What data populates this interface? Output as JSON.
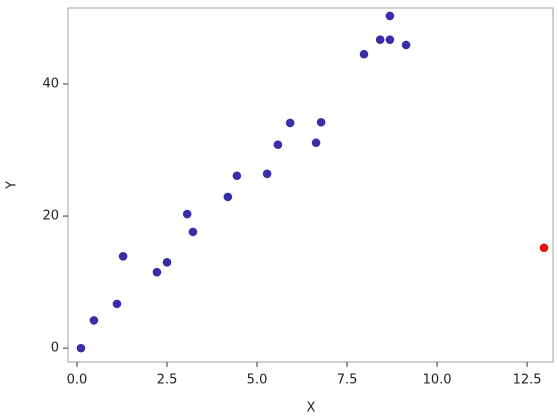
{
  "chart_data": {
    "type": "scatter",
    "xlabel": "X",
    "ylabel": "Y",
    "series": [
      {
        "color": "#3a2ea8",
        "x": [
          0.11,
          0.47,
          1.11,
          1.28,
          2.22,
          2.5,
          3.06,
          3.22,
          4.19,
          4.44,
          5.28,
          5.58,
          5.92,
          6.64,
          6.78,
          7.97,
          8.42,
          8.69,
          8.69,
          9.14
        ],
        "values": [
          0,
          4.2,
          6.7,
          13.9,
          11.5,
          13.0,
          20.3,
          17.6,
          22.9,
          26.1,
          26.4,
          30.8,
          34.1,
          31.1,
          34.2,
          44.5,
          46.7,
          50.3,
          46.7,
          45.9
        ]
      },
      {
        "color": "#e8100f",
        "x": [
          12.97
        ],
        "values": [
          15.2
        ]
      }
    ],
    "xlim": [
      -0.25,
      13.22
    ],
    "ylim": [
      -2.1,
      51.5
    ],
    "xticks": [
      {
        "value": 0,
        "label": "0.0"
      },
      2.5,
      {
        "value": 5,
        "label": "5.0"
      },
      7.5,
      {
        "value": 10,
        "label": "10.0"
      },
      12.5
    ],
    "yticks": [
      0,
      20,
      40
    ]
  }
}
